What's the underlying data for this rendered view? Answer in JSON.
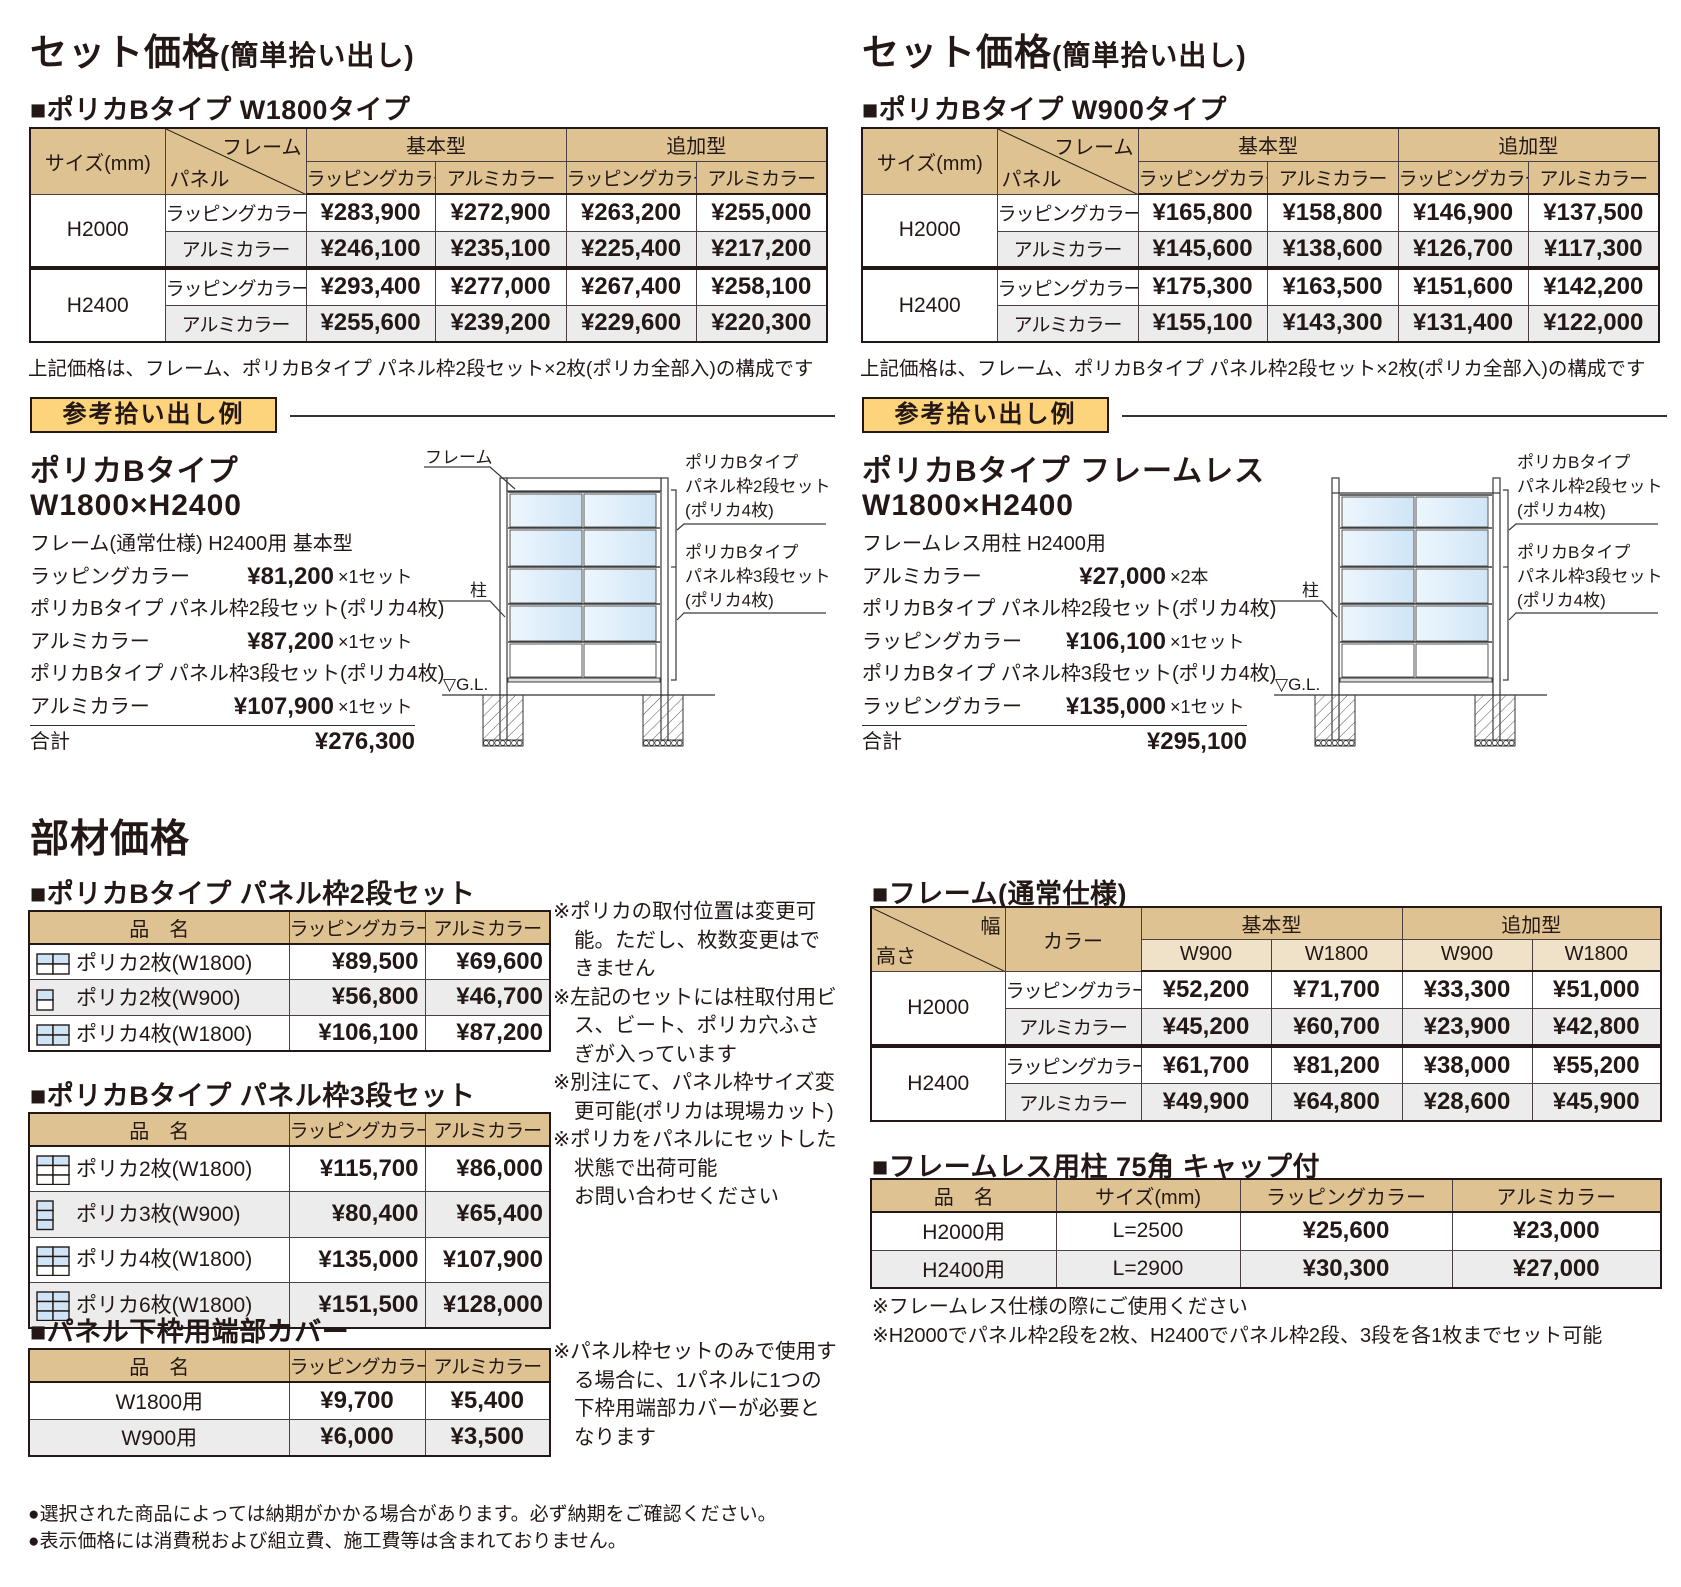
{
  "set_price": [
    {
      "heading": "セット価格",
      "heading_sub": "(簡単拾い出し)",
      "subtitle": "■ポリカBタイプ W1800タイプ",
      "table": {
        "size_header": "サイズ(mm)",
        "frame_header": "フレーム",
        "panel_header": "パネル",
        "groups": [
          "基本型",
          "追加型"
        ],
        "colors": [
          "ラッピングカラー",
          "アルミカラー",
          "ラッピングカラー",
          "アルミカラー"
        ],
        "rows": [
          {
            "size": "H2000",
            "rows": [
              {
                "panel": "ラッピングカラー",
                "prices": [
                  "¥283,900",
                  "¥272,900",
                  "¥263,200",
                  "¥255,000"
                ]
              },
              {
                "panel": "アルミカラー",
                "prices": [
                  "¥246,100",
                  "¥235,100",
                  "¥225,400",
                  "¥217,200"
                ]
              }
            ]
          },
          {
            "size": "H2400",
            "rows": [
              {
                "panel": "ラッピングカラー",
                "prices": [
                  "¥293,400",
                  "¥277,000",
                  "¥267,400",
                  "¥258,100"
                ]
              },
              {
                "panel": "アルミカラー",
                "prices": [
                  "¥255,600",
                  "¥239,200",
                  "¥229,600",
                  "¥220,300"
                ]
              }
            ]
          }
        ]
      },
      "note": "上記価格は、フレーム、ポリカBタイプ パネル枠2段セット×2枚(ポリカ全部入)の構成です",
      "example_badge": "参考拾い出し例",
      "example": {
        "title": [
          "ポリカBタイプ",
          "W1800×H2400"
        ],
        "items": [
          {
            "desc": "フレーム(通常仕様) H2400用 基本型",
            "color": "ラッピングカラー",
            "price": "¥81,200",
            "qty": "×1セット"
          },
          {
            "desc": "ポリカBタイプ パネル枠2段セット(ポリカ4枚)",
            "color": "アルミカラー",
            "price": "¥87,200",
            "qty": "×1セット"
          },
          {
            "desc": "ポリカBタイプ パネル枠3段セット(ポリカ4枚)",
            "color": "アルミカラー",
            "price": "¥107,900",
            "qty": "×1セット"
          }
        ],
        "total_label": "合計",
        "total": "¥276,300"
      },
      "diagram": {
        "frame_label": "フレーム",
        "post_label": "柱",
        "gl_label": "▽G.L.",
        "upper_label": [
          "ポリカBタイプ",
          "パネル枠2段セット",
          "(ポリカ4枚)"
        ],
        "lower_label": [
          "ポリカBタイプ",
          "パネル枠3段セット",
          "(ポリカ4枚)"
        ]
      }
    },
    {
      "heading": "セット価格",
      "heading_sub": "(簡単拾い出し)",
      "subtitle": "■ポリカBタイプ W900タイプ",
      "table": {
        "size_header": "サイズ(mm)",
        "frame_header": "フレーム",
        "panel_header": "パネル",
        "groups": [
          "基本型",
          "追加型"
        ],
        "colors": [
          "ラッピングカラー",
          "アルミカラー",
          "ラッピングカラー",
          "アルミカラー"
        ],
        "rows": [
          {
            "size": "H2000",
            "rows": [
              {
                "panel": "ラッピングカラー",
                "prices": [
                  "¥165,800",
                  "¥158,800",
                  "¥146,900",
                  "¥137,500"
                ]
              },
              {
                "panel": "アルミカラー",
                "prices": [
                  "¥145,600",
                  "¥138,600",
                  "¥126,700",
                  "¥117,300"
                ]
              }
            ]
          },
          {
            "size": "H2400",
            "rows": [
              {
                "panel": "ラッピングカラー",
                "prices": [
                  "¥175,300",
                  "¥163,500",
                  "¥151,600",
                  "¥142,200"
                ]
              },
              {
                "panel": "アルミカラー",
                "prices": [
                  "¥155,100",
                  "¥143,300",
                  "¥131,400",
                  "¥122,000"
                ]
              }
            ]
          }
        ]
      },
      "note": "上記価格は、フレーム、ポリカBタイプ パネル枠2段セット×2枚(ポリカ全部入)の構成です",
      "example_badge": "参考拾い出し例",
      "example": {
        "title": [
          "ポリカBタイプ フレームレス",
          "W1800×H2400"
        ],
        "items": [
          {
            "desc": "フレームレス用柱 H2400用",
            "color": "アルミカラー",
            "price": "¥27,000",
            "qty": "×2本"
          },
          {
            "desc": "ポリカBタイプ パネル枠2段セット(ポリカ4枚)",
            "color": "ラッピングカラー",
            "price": "¥106,100",
            "qty": "×1セット"
          },
          {
            "desc": "ポリカBタイプ パネル枠3段セット(ポリカ4枚)",
            "color": "ラッピングカラー",
            "price": "¥135,000",
            "qty": "×1セット"
          }
        ],
        "total_label": "合計",
        "total": "¥295,100"
      },
      "diagram": {
        "post_label": "柱",
        "gl_label": "▽G.L.",
        "upper_label": [
          "ポリカBタイプ",
          "パネル枠2段セット",
          "(ポリカ4枚)"
        ],
        "lower_label": [
          "ポリカBタイプ",
          "パネル枠3段セット",
          "(ポリカ4枚)"
        ]
      }
    }
  ],
  "parts": {
    "heading": "部材価格",
    "panel2": {
      "title": "■ポリカBタイプ パネル枠2段セット",
      "headers": [
        "品　名",
        "ラッピングカラー",
        "アルミカラー"
      ],
      "rows": [
        {
          "icon": "panel2-2pc-w1800-icon",
          "name": "ポリカ2枚(W1800)",
          "prices": [
            "¥89,500",
            "¥69,600"
          ]
        },
        {
          "icon": "panel2-2pc-w900-icon",
          "name": "ポリカ2枚(W900)",
          "prices": [
            "¥56,800",
            "¥46,700"
          ]
        },
        {
          "icon": "panel2-4pc-w1800-icon",
          "name": "ポリカ4枚(W1800)",
          "prices": [
            "¥106,100",
            "¥87,200"
          ]
        }
      ]
    },
    "panel3": {
      "title": "■ポリカBタイプ パネル枠3段セット",
      "headers": [
        "品　名",
        "ラッピングカラー",
        "アルミカラー"
      ],
      "rows": [
        {
          "icon": "panel3-2pc-w1800-icon",
          "name": "ポリカ2枚(W1800)",
          "prices": [
            "¥115,700",
            "¥86,000"
          ]
        },
        {
          "icon": "panel3-3pc-w900-icon",
          "name": "ポリカ3枚(W900)",
          "prices": [
            "¥80,400",
            "¥65,400"
          ]
        },
        {
          "icon": "panel3-4pc-w1800-icon",
          "name": "ポリカ4枚(W1800)",
          "prices": [
            "¥135,000",
            "¥107,900"
          ]
        },
        {
          "icon": "panel3-6pc-w1800-icon",
          "name": "ポリカ6枚(W1800)",
          "prices": [
            "¥151,500",
            "¥128,000"
          ]
        }
      ]
    },
    "panel_notes": [
      "※ポリカの取付位置は変更可能。ただし、枚数変更はできません",
      "※左記のセットには柱取付用ビス、ビート、ポリカ穴ふさぎが入っています",
      "※別注にて、パネル枠サイズ変更可能(ポリカは現場カット)",
      "※ポリカをパネルにセットした状態で出荷可能",
      "お問い合わせください"
    ],
    "cover": {
      "title": "■パネル下枠用端部カバー",
      "headers": [
        "品　名",
        "ラッピングカラー",
        "アルミカラー"
      ],
      "rows": [
        {
          "name": "W1800用",
          "prices": [
            "¥9,700",
            "¥5,400"
          ]
        },
        {
          "name": "W900用",
          "prices": [
            "¥6,000",
            "¥3,500"
          ]
        }
      ]
    },
    "cover_notes": [
      "※パネル枠セットのみで使用する場合に、1パネルに1つの下枠用端部カバーが必要となります"
    ],
    "frame": {
      "title": "■フレーム(通常仕様)",
      "width_header": "幅",
      "height_header": "高さ",
      "color_header": "カラー",
      "groups": [
        "基本型",
        "追加型"
      ],
      "widths": [
        "W900",
        "W1800",
        "W900",
        "W1800"
      ],
      "rows": [
        {
          "size": "H2000",
          "rows": [
            {
              "color": "ラッピングカラー",
              "prices": [
                "¥52,200",
                "¥71,700",
                "¥33,300",
                "¥51,000"
              ]
            },
            {
              "color": "アルミカラー",
              "prices": [
                "¥45,200",
                "¥60,700",
                "¥23,900",
                "¥42,800"
              ]
            }
          ]
        },
        {
          "size": "H2400",
          "rows": [
            {
              "color": "ラッピングカラー",
              "prices": [
                "¥61,700",
                "¥81,200",
                "¥38,000",
                "¥55,200"
              ]
            },
            {
              "color": "アルミカラー",
              "prices": [
                "¥49,900",
                "¥64,800",
                "¥28,600",
                "¥45,900"
              ]
            }
          ]
        }
      ]
    },
    "post": {
      "title": "■フレームレス用柱 75角 キャップ付",
      "headers": [
        "品　名",
        "サイズ(mm)",
        "ラッピングカラー",
        "アルミカラー"
      ],
      "rows": [
        {
          "name": "H2000用",
          "size": "L=2500",
          "prices": [
            "¥25,600",
            "¥23,000"
          ]
        },
        {
          "name": "H2400用",
          "size": "L=2900",
          "prices": [
            "¥30,300",
            "¥27,000"
          ]
        }
      ],
      "notes": [
        "※フレームレス仕様の際にご使用ください",
        "※H2000でパネル枠2段を2枚、H2400でパネル枠2段、3段を各1枚までセット可能"
      ]
    }
  },
  "footer_notes": [
    "●選択された商品によっては納期がかかる場合があります。必ず納期をご確認ください。",
    "●表示価格には消費税および組立費、施工費等は含まれておりません。"
  ],
  "colors": {
    "header": "#dfc291",
    "header_light": "#f0e2c8",
    "row_alt": "#ececec",
    "badge": "#fdd37b",
    "polycarbonate": "#d6e9f8"
  }
}
